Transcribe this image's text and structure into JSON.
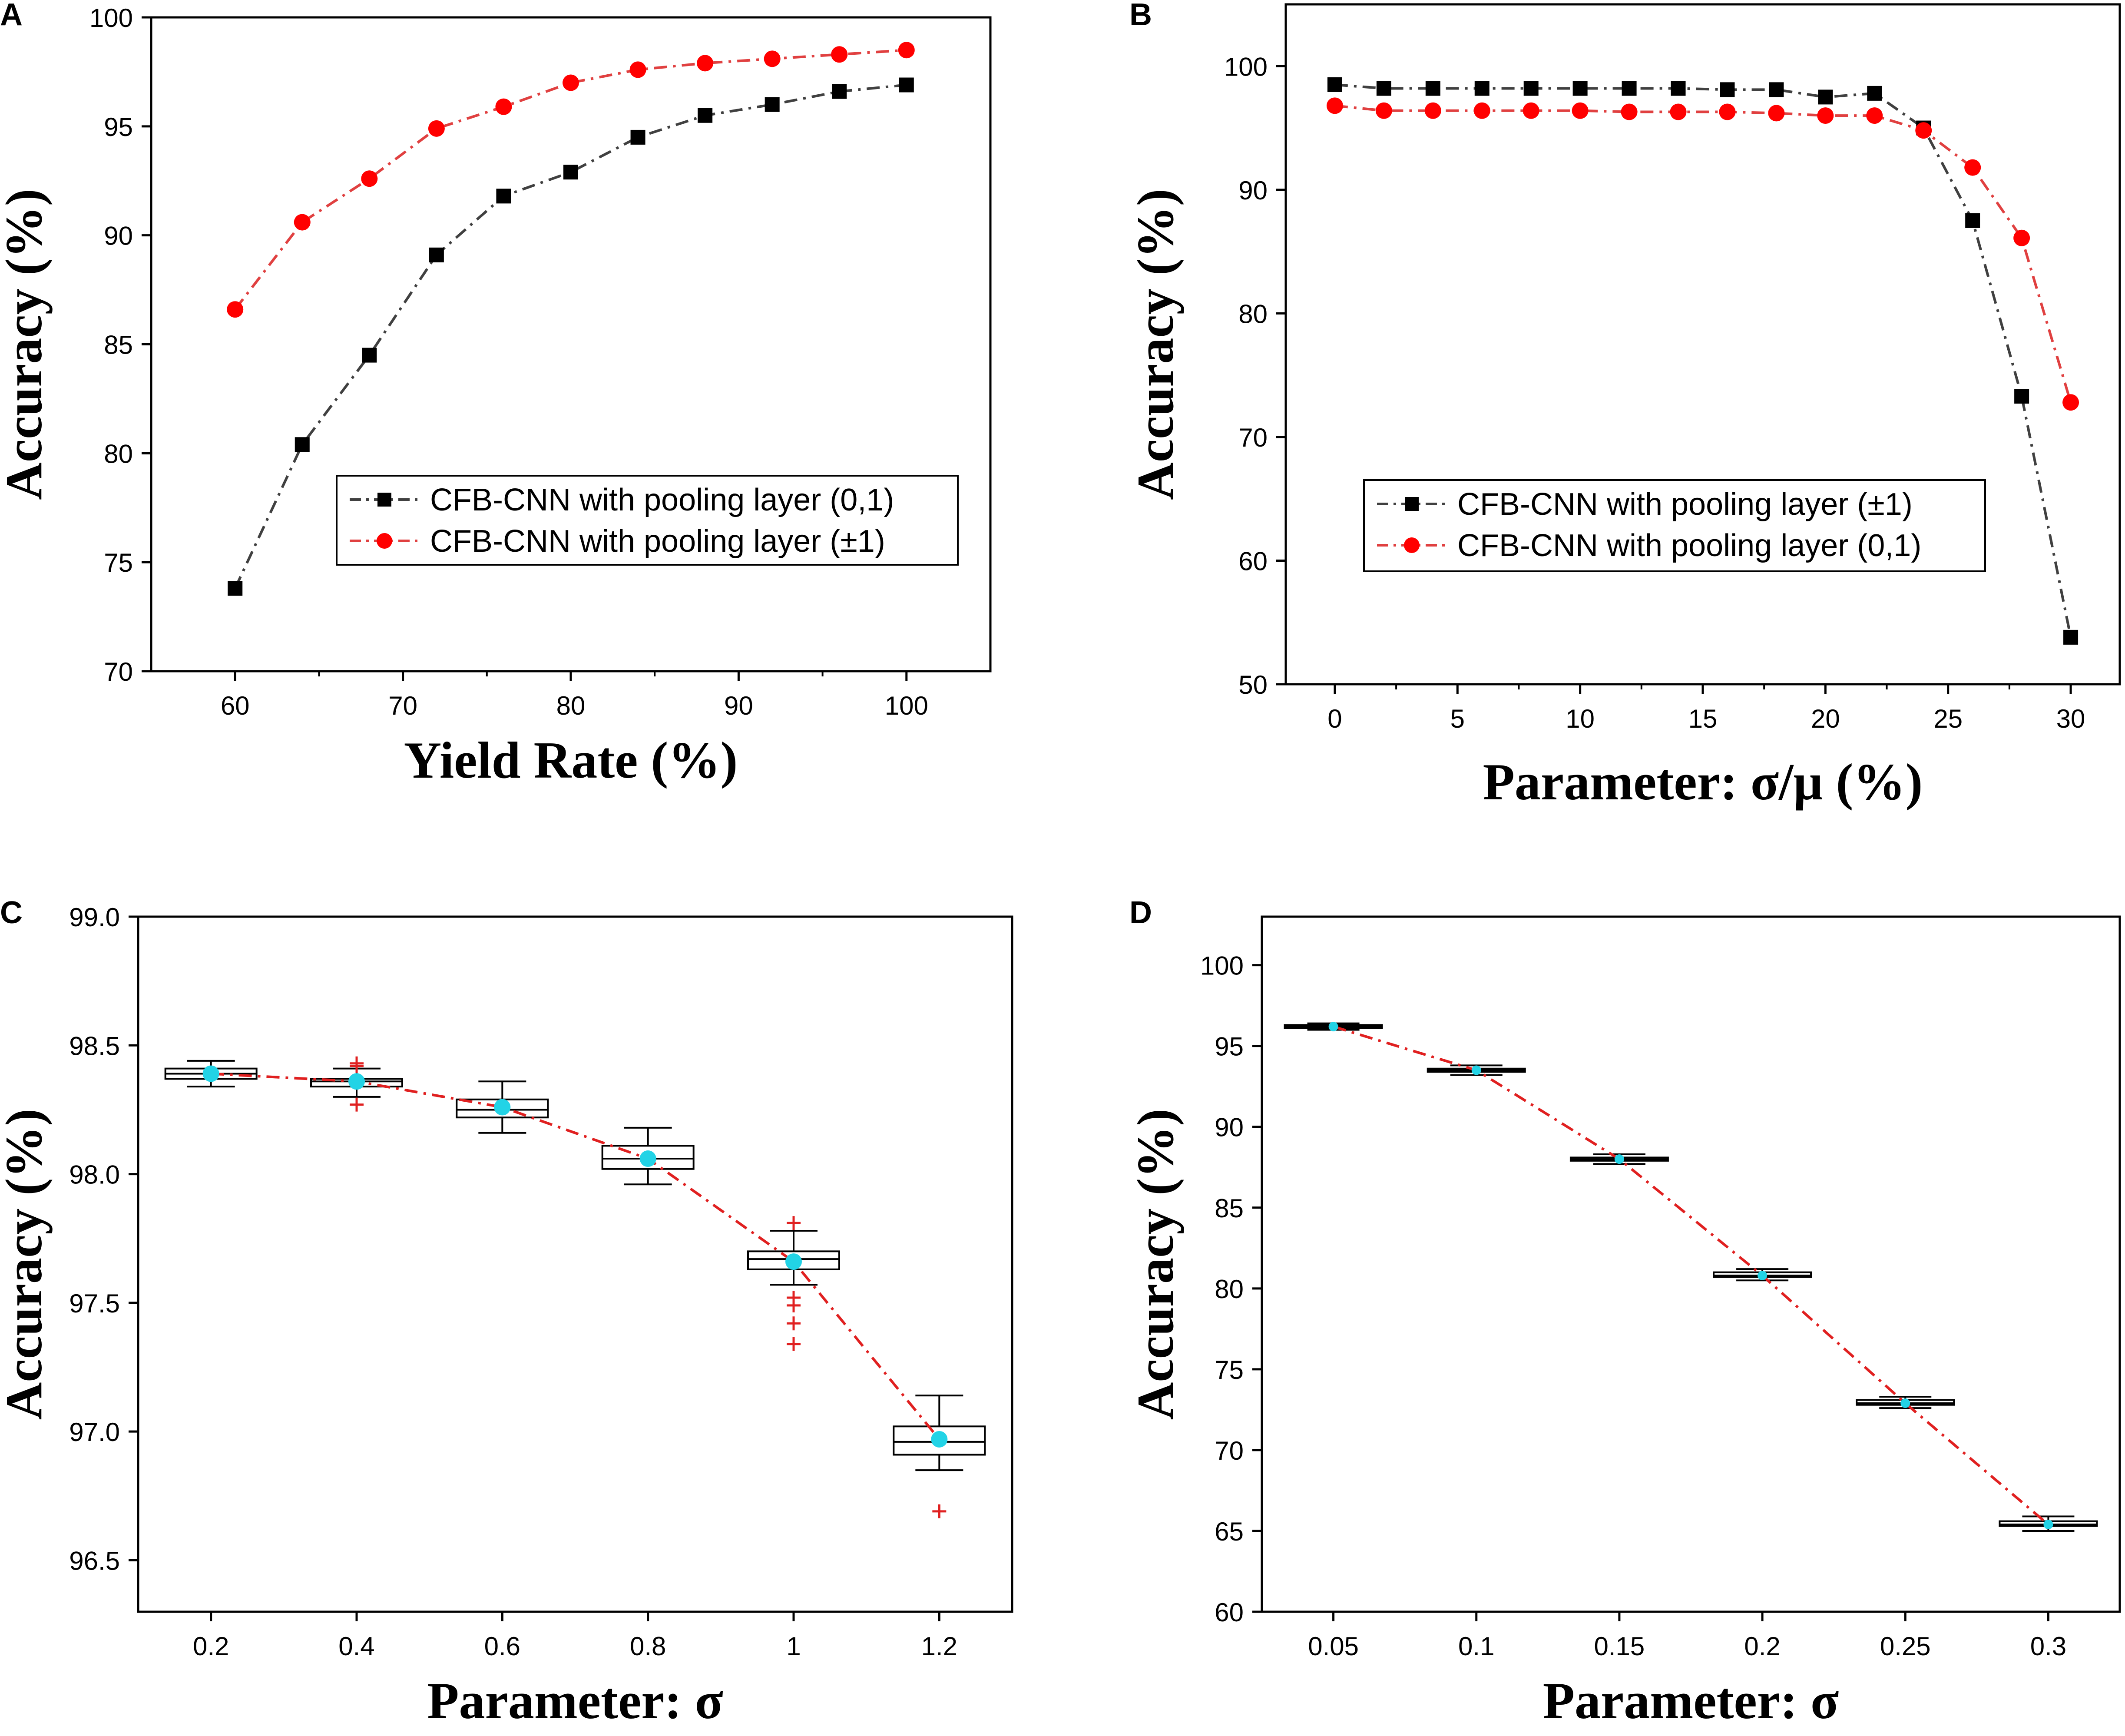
{
  "chart_data": [
    {
      "panel": "A",
      "type": "line",
      "xlabel": "Yield Rate (%)",
      "ylabel": "Accuracy (%)",
      "xlim": [
        55,
        105
      ],
      "ylim": [
        70,
        100
      ],
      "xticks": [
        "60",
        "70",
        "80",
        "90",
        "100"
      ],
      "yticks": [
        "70",
        "75",
        "80",
        "85",
        "90",
        "95",
        "100"
      ],
      "legend_position": "center-right",
      "series": [
        {
          "name": "CFB-CNN with pooling layer (0,1)",
          "color": "#000000",
          "line_color": "#404040",
          "marker": "square",
          "x": [
            60,
            64,
            68,
            72,
            76,
            80,
            84,
            88,
            92,
            96,
            100
          ],
          "values": [
            73.8,
            80.4,
            84.5,
            89.1,
            91.8,
            92.9,
            94.5,
            95.5,
            96.0,
            96.6,
            96.9
          ]
        },
        {
          "name": "CFB-CNN with pooling layer (±1)",
          "color": "#ff0000",
          "line_color": "#e04040",
          "marker": "circle",
          "x": [
            60,
            64,
            68,
            72,
            76,
            80,
            84,
            88,
            92,
            96,
            100
          ],
          "values": [
            86.6,
            90.6,
            92.6,
            94.9,
            95.9,
            97.0,
            97.6,
            97.9,
            98.1,
            98.3,
            98.5
          ]
        }
      ]
    },
    {
      "panel": "B",
      "type": "line",
      "xlabel": "Parameter: σ/μ (%)",
      "ylabel": "Accuracy (%)",
      "xlim": [
        -2,
        32
      ],
      "ylim": [
        50,
        105
      ],
      "xticks": [
        "0",
        "5",
        "10",
        "15",
        "20",
        "25",
        "30"
      ],
      "yticks": [
        "50",
        "60",
        "70",
        "80",
        "90",
        "100"
      ],
      "legend_position": "center-left",
      "series": [
        {
          "name": "CFB-CNN with pooling layer (±1)",
          "color": "#000000",
          "line_color": "#404040",
          "marker": "square",
          "x": [
            0,
            2,
            4,
            6,
            8,
            10,
            12,
            14,
            16,
            18,
            20,
            22,
            24,
            26,
            28,
            30
          ],
          "values": [
            98.5,
            98.2,
            98.2,
            98.2,
            98.2,
            98.2,
            98.2,
            98.2,
            98.1,
            98.1,
            97.5,
            97.8,
            95.0,
            87.5,
            73.3,
            53.8
          ]
        },
        {
          "name": "CFB-CNN with pooling layer (0,1)",
          "color": "#ff0000",
          "line_color": "#e04040",
          "marker": "circle",
          "x": [
            0,
            2,
            4,
            6,
            8,
            10,
            12,
            14,
            16,
            18,
            20,
            22,
            24,
            26,
            28,
            30
          ],
          "values": [
            96.8,
            96.4,
            96.4,
            96.4,
            96.4,
            96.4,
            96.3,
            96.3,
            96.3,
            96.2,
            96.0,
            96.0,
            94.8,
            91.8,
            86.1,
            72.8
          ]
        }
      ]
    },
    {
      "panel": "C",
      "type": "box",
      "xlabel": "Parameter: σ",
      "ylabel": "Accuracy (%)",
      "xlim": [
        0.1,
        1.3
      ],
      "ylim": [
        96.3,
        99.0
      ],
      "xticks": [
        "0.2",
        "0.4",
        "0.6",
        "0.8",
        "1",
        "1.2"
      ],
      "yticks": [
        "96.5",
        "97.0",
        "97.5",
        "98.0",
        "98.5",
        "99.0"
      ],
      "mean_color": "#22d3e6",
      "line_color": "#e02020",
      "outlier_color": "#e02020",
      "boxes": [
        {
          "x": 0.2,
          "min": 98.34,
          "q1": 98.37,
          "median": 98.39,
          "q3": 98.41,
          "max": 98.44,
          "mean": 98.39,
          "outliers": []
        },
        {
          "x": 0.4,
          "min": 98.3,
          "q1": 98.34,
          "median": 98.36,
          "q3": 98.37,
          "max": 98.41,
          "mean": 98.36,
          "outliers": [
            98.43,
            98.42,
            98.27
          ]
        },
        {
          "x": 0.6,
          "min": 98.16,
          "q1": 98.22,
          "median": 98.25,
          "q3": 98.29,
          "max": 98.36,
          "mean": 98.26,
          "outliers": []
        },
        {
          "x": 0.8,
          "min": 97.96,
          "q1": 98.02,
          "median": 98.06,
          "q3": 98.11,
          "max": 98.18,
          "mean": 98.06,
          "outliers": []
        },
        {
          "x": 1.0,
          "min": 97.57,
          "q1": 97.63,
          "median": 97.67,
          "q3": 97.7,
          "max": 97.78,
          "mean": 97.66,
          "outliers": [
            97.81,
            97.52,
            97.49,
            97.42,
            97.34
          ]
        },
        {
          "x": 1.2,
          "min": 96.85,
          "q1": 96.91,
          "median": 96.96,
          "q3": 97.02,
          "max": 97.14,
          "mean": 96.97,
          "outliers": [
            96.69
          ]
        }
      ]
    },
    {
      "panel": "D",
      "type": "box",
      "xlabel": "Parameter: σ",
      "ylabel": "Accuracy (%)",
      "xlim": [
        0.025,
        0.325
      ],
      "ylim": [
        60,
        103
      ],
      "xticks": [
        "0.05",
        "0.1",
        "0.15",
        "0.2",
        "0.25",
        "0.3"
      ],
      "yticks": [
        "60",
        "65",
        "70",
        "75",
        "80",
        "85",
        "90",
        "95",
        "100"
      ],
      "mean_color": "#22d3e6",
      "line_color": "#e02020",
      "outlier_color": "#e02020",
      "boxes": [
        {
          "x": 0.05,
          "min": 96.0,
          "q1": 96.1,
          "median": 96.2,
          "q3": 96.3,
          "max": 96.4,
          "mean": 96.2,
          "outliers": []
        },
        {
          "x": 0.1,
          "min": 93.2,
          "q1": 93.4,
          "median": 93.5,
          "q3": 93.6,
          "max": 93.8,
          "mean": 93.5,
          "outliers": []
        },
        {
          "x": 0.15,
          "min": 87.7,
          "q1": 87.9,
          "median": 88.0,
          "q3": 88.1,
          "max": 88.3,
          "mean": 88.0,
          "outliers": []
        },
        {
          "x": 0.2,
          "min": 80.5,
          "q1": 80.7,
          "median": 80.8,
          "q3": 81.0,
          "max": 81.2,
          "mean": 80.8,
          "outliers": []
        },
        {
          "x": 0.25,
          "min": 72.6,
          "q1": 72.8,
          "median": 72.9,
          "q3": 73.1,
          "max": 73.3,
          "mean": 72.9,
          "outliers": []
        },
        {
          "x": 0.3,
          "min": 65.0,
          "q1": 65.3,
          "median": 65.4,
          "q3": 65.6,
          "max": 65.9,
          "mean": 65.4,
          "outliers": []
        }
      ]
    }
  ]
}
